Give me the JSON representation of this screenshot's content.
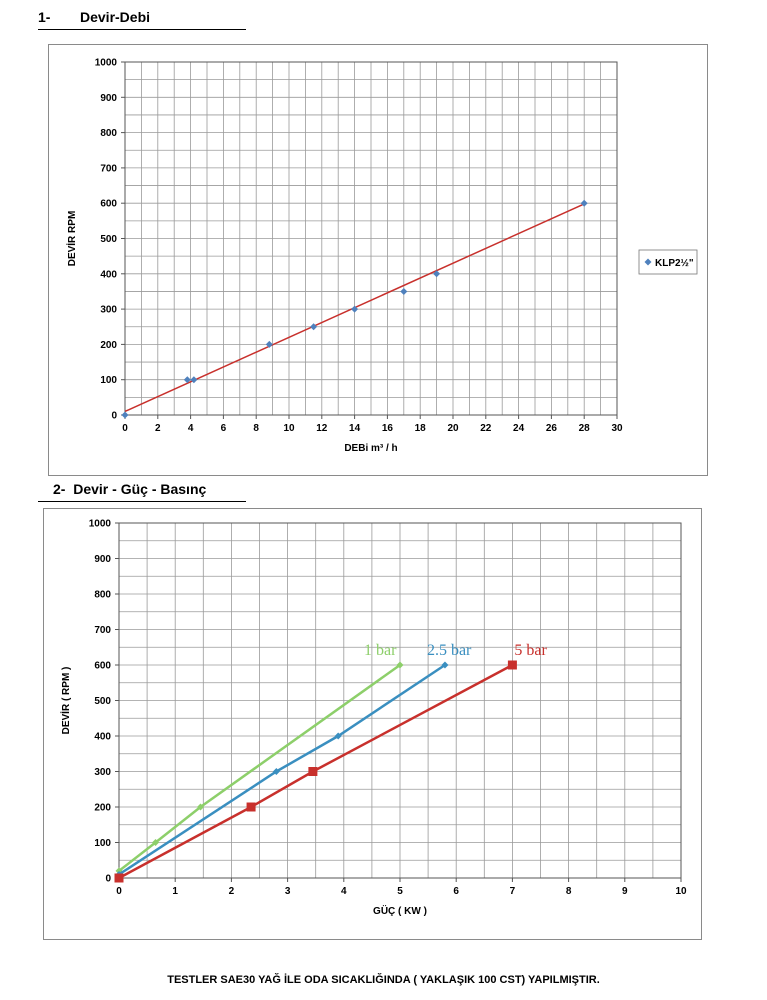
{
  "section1": {
    "number": "1-",
    "title": "Devir-Debi"
  },
  "section2": {
    "number": "2-",
    "title": "Devir - Güç - Basınç"
  },
  "footer": "TESTLER SAE30 YAĞ İLE ODA SICAKLIĞINDA ( YAKLAŞIK 100 CST) YAPILMIŞTIR.",
  "colors": {
    "green": "#8dcf6a",
    "blue": "#3a8fc0",
    "red": "#c8302c",
    "point": "#4f81bd",
    "grid": "#9a9a9a"
  },
  "chart_data": [
    {
      "type": "scatter",
      "title": "",
      "xlabel": "DEBi m³ / h",
      "ylabel": "DEVİR RPM",
      "xlim": [
        0,
        30
      ],
      "ylim": [
        0,
        1000
      ],
      "x_ticks": [
        "0",
        "2",
        "4",
        "6",
        "8",
        "10",
        "12",
        "14",
        "16",
        "18",
        "20",
        "22",
        "24",
        "26",
        "28",
        "30"
      ],
      "y_ticks": [
        "0",
        "100",
        "200",
        "300",
        "400",
        "500",
        "600",
        "700",
        "800",
        "900",
        "1000"
      ],
      "grid": true,
      "legend": "right",
      "series": [
        {
          "name": "KLP2½\"",
          "color": "#4f81bd",
          "x": [
            0,
            3.8,
            4.2,
            8.8,
            11.5,
            14,
            17,
            19,
            28
          ],
          "y": [
            0,
            100,
            100,
            200,
            250,
            300,
            350,
            400,
            600
          ]
        }
      ],
      "trendline": {
        "color": "#c8302c",
        "x": [
          0,
          28
        ],
        "y": [
          10,
          598
        ]
      }
    },
    {
      "type": "line",
      "title": "",
      "xlabel": "GÜÇ ( KW )",
      "ylabel": "DEVİR ( RPM )",
      "xlim": [
        0,
        10
      ],
      "ylim": [
        0,
        1000
      ],
      "x_ticks": [
        "0",
        "1",
        "2",
        "3",
        "4",
        "5",
        "6",
        "7",
        "8",
        "9",
        "10"
      ],
      "y_ticks": [
        "0",
        "100",
        "200",
        "300",
        "400",
        "500",
        "600",
        "700",
        "800",
        "900",
        "1000"
      ],
      "grid": true,
      "series": [
        {
          "name": "1 bar",
          "color": "#8dcf6a",
          "marker": "diamond",
          "x": [
            0,
            0.65,
            1.45,
            5.0
          ],
          "y": [
            20,
            100,
            200,
            600
          ]
        },
        {
          "name": "2.5 bar",
          "color": "#3a8fc0",
          "marker": "diamond",
          "x": [
            0,
            2.8,
            3.9,
            5.8
          ],
          "y": [
            10,
            300,
            400,
            600
          ]
        },
        {
          "name": "5 bar",
          "color": "#c8302c",
          "marker": "square",
          "x": [
            0,
            2.35,
            3.45,
            7.0
          ],
          "y": [
            0,
            200,
            300,
            600
          ]
        }
      ]
    }
  ]
}
